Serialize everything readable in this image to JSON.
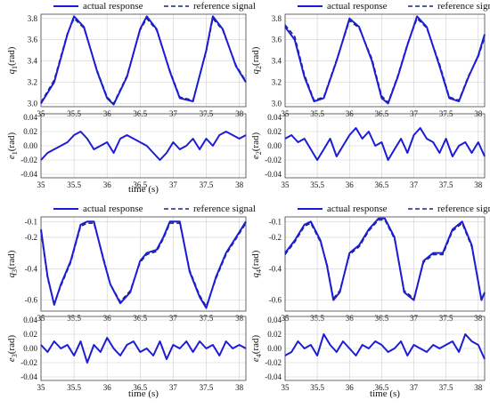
{
  "colors": {
    "line": "#1c1cd6",
    "ref": "#1a2a6c"
  },
  "legend": {
    "actual": "actual response",
    "reference": "reference signal"
  },
  "chart_data": [
    {
      "type": "line",
      "id": "q1",
      "ylabel": {
        "sym": "q",
        "sub": "1",
        "unit": "(rad)"
      },
      "xlim": [
        35,
        38.1
      ],
      "ylim": [
        2.97,
        3.84
      ],
      "xticks": [
        "35",
        "35.5",
        "36",
        "36.5",
        "37",
        "37.5",
        "38"
      ],
      "yticks": [
        "3.0",
        "3.2",
        "3.4",
        "3.6",
        "3.8"
      ],
      "series": [
        {
          "name": "actual response",
          "style": "solid",
          "x": [
            35.0,
            35.2,
            35.4,
            35.5,
            35.65,
            35.85,
            36.0,
            36.1,
            36.3,
            36.5,
            36.6,
            36.75,
            36.95,
            37.1,
            37.3,
            37.5,
            37.6,
            37.75,
            37.95,
            38.1
          ],
          "y": [
            3.0,
            3.2,
            3.65,
            3.82,
            3.72,
            3.3,
            3.05,
            2.99,
            3.25,
            3.7,
            3.82,
            3.7,
            3.3,
            3.05,
            3.02,
            3.5,
            3.82,
            3.7,
            3.35,
            3.2
          ]
        },
        {
          "name": "reference signal",
          "style": "dashed",
          "x": [
            35.0,
            35.2,
            35.4,
            35.5,
            35.65,
            35.85,
            36.0,
            36.1,
            36.3,
            36.5,
            36.6,
            36.75,
            36.95,
            37.1,
            37.3,
            37.5,
            37.6,
            37.75,
            37.95,
            38.1
          ],
          "y": [
            3.01,
            3.22,
            3.66,
            3.8,
            3.71,
            3.31,
            3.06,
            3.0,
            3.26,
            3.69,
            3.8,
            3.69,
            3.31,
            3.06,
            3.03,
            3.49,
            3.8,
            3.69,
            3.36,
            3.21
          ]
        }
      ]
    },
    {
      "type": "line",
      "id": "e1",
      "ylabel": {
        "sym": "e",
        "sub": "1",
        "unit": "(rad)"
      },
      "xlim": [
        35,
        38.1
      ],
      "ylim": [
        -0.045,
        0.045
      ],
      "xticks": [
        "35",
        "35.5",
        "36",
        "36.5",
        "37",
        "37.5",
        "38"
      ],
      "yticks": [
        "-0.04",
        "-0.02",
        "0.00",
        "0.02",
        "0.04"
      ],
      "xlabel": "time (s)",
      "series": [
        {
          "name": "actual response",
          "style": "solid",
          "x": [
            35.0,
            35.1,
            35.2,
            35.3,
            35.4,
            35.5,
            35.6,
            35.7,
            35.8,
            35.9,
            36.0,
            36.1,
            36.2,
            36.3,
            36.4,
            36.5,
            36.6,
            36.7,
            36.8,
            36.9,
            37.0,
            37.1,
            37.2,
            37.3,
            37.4,
            37.5,
            37.6,
            37.7,
            37.8,
            37.9,
            38.0,
            38.1
          ],
          "y": [
            -0.02,
            -0.01,
            -0.005,
            0.0,
            0.005,
            0.015,
            0.02,
            0.01,
            -0.005,
            0.0,
            0.005,
            -0.01,
            0.01,
            0.015,
            0.01,
            0.005,
            0.0,
            -0.01,
            -0.02,
            -0.01,
            0.005,
            -0.005,
            0.0,
            0.01,
            -0.005,
            0.01,
            0.0,
            0.015,
            0.02,
            0.015,
            0.01,
            0.015
          ]
        }
      ]
    },
    {
      "type": "line",
      "id": "q2",
      "ylabel": {
        "sym": "q",
        "sub": "2",
        "unit": "(rad)"
      },
      "xlim": [
        35,
        38.1
      ],
      "ylim": [
        2.97,
        3.84
      ],
      "xticks": [
        "35",
        "35.5",
        "36",
        "36.5",
        "37",
        "37.5",
        "38"
      ],
      "yticks": [
        "3.0",
        "3.2",
        "3.4",
        "3.6",
        "3.8"
      ],
      "series": [
        {
          "name": "actual response",
          "style": "solid",
          "x": [
            35.0,
            35.15,
            35.3,
            35.45,
            35.6,
            35.8,
            36.0,
            36.15,
            36.35,
            36.5,
            36.6,
            36.75,
            36.9,
            37.05,
            37.2,
            37.4,
            37.55,
            37.7,
            37.85,
            38.0,
            38.1
          ],
          "y": [
            3.72,
            3.6,
            3.25,
            3.02,
            3.05,
            3.4,
            3.8,
            3.72,
            3.4,
            3.05,
            3.0,
            3.25,
            3.55,
            3.82,
            3.72,
            3.35,
            3.05,
            3.02,
            3.25,
            3.45,
            3.65
          ]
        },
        {
          "name": "reference signal",
          "style": "dashed",
          "x": [
            35.0,
            35.15,
            35.3,
            35.45,
            35.6,
            35.8,
            36.0,
            36.15,
            36.35,
            36.5,
            36.6,
            36.75,
            36.9,
            37.05,
            37.2,
            37.4,
            37.55,
            37.7,
            37.85,
            38.0,
            38.1
          ],
          "y": [
            3.74,
            3.63,
            3.27,
            3.03,
            3.06,
            3.41,
            3.78,
            3.71,
            3.42,
            3.07,
            3.01,
            3.26,
            3.56,
            3.8,
            3.71,
            3.37,
            3.06,
            3.03,
            3.26,
            3.44,
            3.62
          ]
        }
      ]
    },
    {
      "type": "line",
      "id": "e2",
      "ylabel": {
        "sym": "e",
        "sub": "2",
        "unit": "(rad)"
      },
      "xlim": [
        35,
        38.1
      ],
      "ylim": [
        -0.045,
        0.045
      ],
      "xticks": [
        "35",
        "35.5",
        "36",
        "36.5",
        "37",
        "37.5",
        "38"
      ],
      "yticks": [
        "-0.04",
        "-0.02",
        "0.00",
        "0.02",
        "0.04"
      ],
      "series": [
        {
          "name": "actual response",
          "style": "solid",
          "x": [
            35.0,
            35.1,
            35.2,
            35.3,
            35.4,
            35.5,
            35.6,
            35.7,
            35.8,
            35.9,
            36.0,
            36.1,
            36.2,
            36.3,
            36.4,
            36.5,
            36.6,
            36.7,
            36.8,
            36.9,
            37.0,
            37.1,
            37.2,
            37.3,
            37.4,
            37.5,
            37.6,
            37.7,
            37.8,
            37.9,
            38.0,
            38.1
          ],
          "y": [
            0.01,
            0.015,
            0.005,
            0.01,
            -0.005,
            -0.02,
            -0.005,
            0.01,
            -0.015,
            0.0,
            0.015,
            0.025,
            0.01,
            0.02,
            0.0,
            0.005,
            -0.02,
            -0.005,
            0.01,
            -0.01,
            0.015,
            0.025,
            0.01,
            0.005,
            -0.01,
            0.01,
            -0.015,
            0.0,
            0.005,
            -0.01,
            0.005,
            -0.015
          ]
        }
      ]
    },
    {
      "type": "line",
      "id": "q3",
      "ylabel": {
        "sym": "q",
        "sub": "3",
        "unit": "(rad)"
      },
      "xlim": [
        35,
        38.1
      ],
      "ylim": [
        -0.67,
        -0.07
      ],
      "xticks": [
        "35",
        "35.5",
        "36",
        "36.5",
        "37",
        "37.5",
        "38"
      ],
      "yticks": [
        "-0.1",
        "-0.2",
        "-0.4",
        "-0.6"
      ],
      "series": [
        {
          "name": "actual response",
          "style": "solid",
          "x": [
            35.0,
            35.1,
            35.2,
            35.3,
            35.45,
            35.6,
            35.7,
            35.8,
            35.95,
            36.05,
            36.2,
            36.35,
            36.5,
            36.6,
            36.75,
            36.85,
            36.95,
            37.1,
            37.25,
            37.4,
            37.5,
            37.65,
            37.8,
            37.95,
            38.1
          ],
          "y": [
            -0.15,
            -0.45,
            -0.63,
            -0.5,
            -0.35,
            -0.12,
            -0.1,
            -0.1,
            -0.35,
            -0.5,
            -0.62,
            -0.55,
            -0.35,
            -0.3,
            -0.28,
            -0.2,
            -0.1,
            -0.1,
            -0.42,
            -0.58,
            -0.65,
            -0.45,
            -0.3,
            -0.2,
            -0.1
          ]
        },
        {
          "name": "reference signal",
          "style": "dashed",
          "x": [
            35.0,
            35.1,
            35.2,
            35.3,
            35.45,
            35.6,
            35.7,
            35.8,
            35.95,
            36.05,
            36.2,
            36.35,
            36.5,
            36.6,
            36.75,
            36.85,
            36.95,
            37.1,
            37.25,
            37.4,
            37.5,
            37.65,
            37.8,
            37.95,
            38.1
          ],
          "y": [
            -0.16,
            -0.46,
            -0.62,
            -0.51,
            -0.36,
            -0.13,
            -0.11,
            -0.11,
            -0.34,
            -0.5,
            -0.61,
            -0.54,
            -0.36,
            -0.31,
            -0.29,
            -0.21,
            -0.11,
            -0.11,
            -0.41,
            -0.57,
            -0.64,
            -0.46,
            -0.31,
            -0.21,
            -0.11
          ]
        }
      ]
    },
    {
      "type": "line",
      "id": "e3",
      "ylabel": {
        "sym": "e",
        "sub": "3",
        "unit": "(rad)"
      },
      "xlim": [
        35,
        38.1
      ],
      "ylim": [
        -0.045,
        0.045
      ],
      "xticks": [
        "35",
        "35.5",
        "36",
        "36.5",
        "37",
        "37.5",
        "38"
      ],
      "yticks": [
        "-0.04",
        "-0.02",
        "0.00",
        "0.02",
        "0.04"
      ],
      "xlabel": "time (s)",
      "series": [
        {
          "name": "actual response",
          "style": "solid",
          "x": [
            35.0,
            35.1,
            35.2,
            35.3,
            35.4,
            35.5,
            35.6,
            35.7,
            35.8,
            35.9,
            36.0,
            36.1,
            36.2,
            36.3,
            36.4,
            36.5,
            36.6,
            36.7,
            36.8,
            36.9,
            37.0,
            37.1,
            37.2,
            37.3,
            37.4,
            37.5,
            37.6,
            37.7,
            37.8,
            37.9,
            38.0,
            38.1
          ],
          "y": [
            0.005,
            -0.005,
            0.01,
            0.0,
            0.005,
            -0.01,
            0.01,
            -0.02,
            0.005,
            -0.005,
            0.015,
            0.0,
            -0.01,
            0.005,
            0.01,
            -0.005,
            0.0,
            -0.01,
            0.01,
            -0.015,
            0.005,
            0.0,
            0.01,
            -0.005,
            0.01,
            0.0,
            0.005,
            -0.01,
            0.01,
            0.0,
            0.005,
            0.0
          ]
        }
      ]
    },
    {
      "type": "line",
      "id": "q4",
      "ylabel": {
        "sym": "q",
        "sub": "4",
        "unit": "(rad)"
      },
      "xlim": [
        35,
        38.1
      ],
      "ylim": [
        -0.67,
        -0.07
      ],
      "xticks": [
        "35",
        "35.5",
        "36",
        "36.5",
        "37",
        "37.5",
        "38"
      ],
      "yticks": [
        "-0.1",
        "-0.2",
        "-0.4",
        "-0.6"
      ],
      "series": [
        {
          "name": "actual response",
          "style": "solid",
          "x": [
            35.0,
            35.15,
            35.3,
            35.4,
            35.55,
            35.65,
            35.75,
            35.85,
            36.0,
            36.15,
            36.3,
            36.45,
            36.55,
            36.7,
            36.85,
            37.0,
            37.15,
            37.3,
            37.45,
            37.6,
            37.75,
            37.9,
            38.05,
            38.1
          ],
          "y": [
            -0.3,
            -0.22,
            -0.12,
            -0.1,
            -0.22,
            -0.38,
            -0.6,
            -0.55,
            -0.3,
            -0.25,
            -0.15,
            -0.08,
            -0.08,
            -0.2,
            -0.55,
            -0.6,
            -0.35,
            -0.3,
            -0.3,
            -0.15,
            -0.1,
            -0.25,
            -0.6,
            -0.55
          ]
        },
        {
          "name": "reference signal",
          "style": "dashed",
          "x": [
            35.0,
            35.15,
            35.3,
            35.4,
            35.55,
            35.65,
            35.75,
            35.85,
            36.0,
            36.15,
            36.3,
            36.45,
            36.55,
            36.7,
            36.85,
            37.0,
            37.15,
            37.3,
            37.45,
            37.6,
            37.75,
            37.9,
            38.05,
            38.1
          ],
          "y": [
            -0.31,
            -0.23,
            -0.13,
            -0.11,
            -0.23,
            -0.37,
            -0.59,
            -0.54,
            -0.31,
            -0.26,
            -0.16,
            -0.09,
            -0.09,
            -0.21,
            -0.54,
            -0.59,
            -0.36,
            -0.31,
            -0.31,
            -0.16,
            -0.11,
            -0.26,
            -0.59,
            -0.56
          ]
        }
      ]
    },
    {
      "type": "line",
      "id": "e4",
      "ylabel": {
        "sym": "e",
        "sub": "4",
        "unit": "(rad)"
      },
      "xlim": [
        35,
        38.1
      ],
      "ylim": [
        -0.045,
        0.045
      ],
      "xticks": [
        "35",
        "35.5",
        "36",
        "36.5",
        "37",
        "37.5",
        "38"
      ],
      "yticks": [
        "-0.04",
        "-0.02",
        "0.00",
        "0.02",
        "0.04"
      ],
      "xlabel": "time (s)",
      "series": [
        {
          "name": "actual response",
          "style": "solid",
          "x": [
            35.0,
            35.1,
            35.2,
            35.3,
            35.4,
            35.5,
            35.6,
            35.7,
            35.8,
            35.9,
            36.0,
            36.1,
            36.2,
            36.3,
            36.4,
            36.5,
            36.6,
            36.7,
            36.8,
            36.9,
            37.0,
            37.1,
            37.2,
            37.3,
            37.4,
            37.5,
            37.6,
            37.7,
            37.8,
            37.9,
            38.0,
            38.1
          ],
          "y": [
            -0.01,
            -0.005,
            0.01,
            0.0,
            0.005,
            -0.01,
            0.02,
            0.005,
            -0.005,
            0.01,
            0.0,
            -0.01,
            0.005,
            0.0,
            0.01,
            0.005,
            -0.005,
            0.0,
            0.01,
            -0.01,
            0.005,
            0.0,
            -0.005,
            0.005,
            0.0,
            0.005,
            0.01,
            -0.005,
            0.02,
            0.01,
            0.005,
            -0.015
          ]
        }
      ]
    }
  ]
}
